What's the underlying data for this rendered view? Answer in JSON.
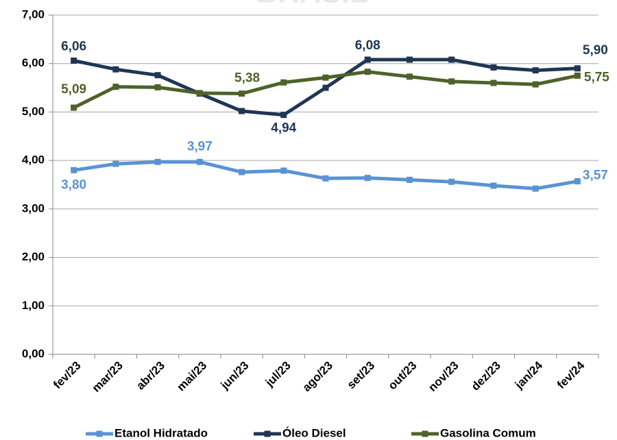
{
  "chart_data": {
    "type": "line",
    "title": "BRASIL",
    "categories": [
      "fev/23",
      "mar/23",
      "abr/23",
      "mai/23",
      "jun/23",
      "jul/23",
      "ago/23",
      "set/23",
      "out/23",
      "nov/23",
      "dez/23",
      "jan/24",
      "fev/24"
    ],
    "series": [
      {
        "name": "Etanol Hidratado",
        "color": "#5b92d6",
        "values": [
          3.8,
          3.93,
          3.97,
          3.97,
          3.76,
          3.79,
          3.63,
          3.64,
          3.6,
          3.56,
          3.48,
          3.42,
          3.57
        ],
        "value_labels": [
          "3,80",
          null,
          null,
          "3,97",
          null,
          null,
          null,
          null,
          null,
          null,
          null,
          null,
          "3,57"
        ]
      },
      {
        "name": "Óleo Diesel",
        "color": "#1f3654",
        "values": [
          6.06,
          5.88,
          5.76,
          5.38,
          5.02,
          4.94,
          5.5,
          6.08,
          6.08,
          6.08,
          5.92,
          5.86,
          5.9
        ],
        "value_labels": [
          "6,06",
          null,
          null,
          null,
          null,
          "4,94",
          null,
          "6,08",
          null,
          null,
          null,
          null,
          "5,90"
        ]
      },
      {
        "name": "Gasolina Comum",
        "color": "#4f6228",
        "values": [
          5.09,
          5.52,
          5.51,
          5.39,
          5.38,
          5.61,
          5.71,
          5.83,
          5.73,
          5.63,
          5.6,
          5.57,
          5.75
        ],
        "value_labels": [
          "5,09",
          null,
          null,
          null,
          "5,38",
          null,
          null,
          null,
          null,
          null,
          null,
          null,
          "5,75"
        ]
      }
    ],
    "ylim": [
      0,
      7
    ],
    "yticks": [
      {
        "value": 0,
        "label": "0,00"
      },
      {
        "value": 1,
        "label": "1,00"
      },
      {
        "value": 2,
        "label": "2,00"
      },
      {
        "value": 3,
        "label": "3,00"
      },
      {
        "value": 4,
        "label": "4,00"
      },
      {
        "value": 5,
        "label": "5,00"
      },
      {
        "value": 6,
        "label": "6,00"
      },
      {
        "value": 7,
        "label": "7,00"
      }
    ],
    "grid": true,
    "legend": "bottom"
  }
}
